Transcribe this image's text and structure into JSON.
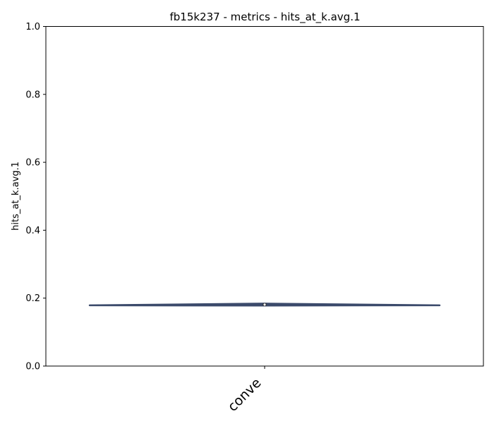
{
  "chart_data": {
    "type": "violin",
    "title": "fb15k237 - metrics - hits_at_k.avg.1",
    "xlabel": "",
    "ylabel": "hits_at_k.avg.1",
    "categories": [
      "conve"
    ],
    "ylim": [
      0.0,
      1.0
    ],
    "yticks": [
      "0.0",
      "0.2",
      "0.4",
      "0.6",
      "0.8",
      "1.0"
    ],
    "grid": false,
    "violins": [
      {
        "category": "conve",
        "min": 0.178,
        "q1": 0.179,
        "median": 0.181,
        "q3": 0.183,
        "max": 0.184,
        "color": "#3b4a6b"
      }
    ]
  }
}
